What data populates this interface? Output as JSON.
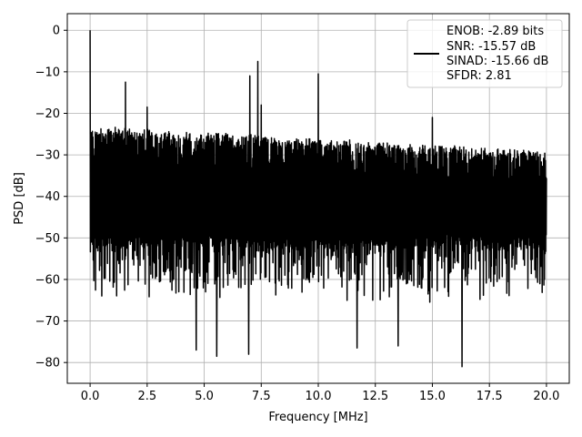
{
  "chart_data": {
    "type": "line",
    "title": "",
    "xlabel": "Frequency [MHz]",
    "ylabel": "PSD [dB]",
    "xlim": [
      -1.0,
      21.0
    ],
    "ylim": [
      -85,
      4
    ],
    "x_ticks": [
      0.0,
      2.5,
      5.0,
      7.5,
      10.0,
      12.5,
      15.0,
      17.5,
      20.0
    ],
    "x_tick_labels": [
      "0.0",
      "2.5",
      "5.0",
      "7.5",
      "10.0",
      "12.5",
      "15.0",
      "17.5",
      "20.0"
    ],
    "y_ticks": [
      0,
      -10,
      -20,
      -30,
      -40,
      -50,
      -60,
      -70,
      -80
    ],
    "y_tick_labels": [
      "0",
      "−10",
      "−20",
      "−30",
      "−40",
      "−50",
      "−60",
      "−70",
      "−80"
    ],
    "grid": true,
    "legend_position": "top-right",
    "legend_entries": [
      "ENOB: -2.89 bits",
      "SNR: -15.57 dB",
      "SINAD: -15.66 dB",
      "SFDR: 2.81"
    ],
    "series": [
      {
        "color": "#000000",
        "noise_floor_upper_db_start": -23,
        "noise_floor_upper_db_end": -29,
        "noise_floor_lower_db": -52,
        "peaks": [
          {
            "x": 0.0,
            "y": 0
          },
          {
            "x": 1.55,
            "y": -12.5
          },
          {
            "x": 2.5,
            "y": -18.5
          },
          {
            "x": 4.65,
            "y": -22
          },
          {
            "x": 7.0,
            "y": -11
          },
          {
            "x": 7.35,
            "y": -7.5
          },
          {
            "x": 7.5,
            "y": -18
          },
          {
            "x": 10.0,
            "y": -10.5
          },
          {
            "x": 15.0,
            "y": -21
          }
        ],
        "dips": [
          {
            "x": 4.65,
            "y": -77
          },
          {
            "x": 5.55,
            "y": -78.5
          },
          {
            "x": 6.95,
            "y": -78
          },
          {
            "x": 11.7,
            "y": -76.5
          },
          {
            "x": 13.5,
            "y": -76
          },
          {
            "x": 16.3,
            "y": -81
          }
        ]
      }
    ]
  }
}
